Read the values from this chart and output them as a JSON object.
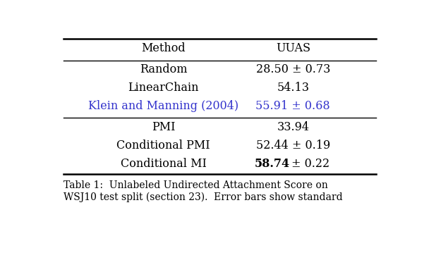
{
  "title": "Table 1:  Unlabeled Undirected Attachment Score on\nWSJ10 test split (section 23).  Error bars show standard",
  "col_headers": [
    "Method",
    "UUAS"
  ],
  "rows": [
    {
      "method": "Random",
      "uuas": "28.50 ± 0.73",
      "bold_uuas": false,
      "color": "#000000",
      "small_caps": true,
      "section": 1
    },
    {
      "method": "LinearChain",
      "uuas": "54.13",
      "bold_uuas": false,
      "color": "#000000",
      "small_caps": true,
      "section": 1
    },
    {
      "method": "Klein and Manning (2004)",
      "uuas": "55.91 ± 0.68",
      "bold_uuas": false,
      "color": "#3333cc",
      "small_caps": false,
      "section": 1
    },
    {
      "method": "PMI",
      "uuas": "33.94",
      "bold_uuas": false,
      "color": "#000000",
      "small_caps": false,
      "section": 2
    },
    {
      "method": "Conditional PMI",
      "uuas": "52.44 ± 0.19",
      "bold_uuas": false,
      "color": "#000000",
      "small_caps": true,
      "section": 2
    },
    {
      "method": "Conditional MI",
      "uuas": "58.74 ± 0.22",
      "bold_uuas": true,
      "color": "#000000",
      "small_caps": true,
      "section": 2
    }
  ],
  "background_color": "#ffffff",
  "line_color": "#000000",
  "font_size": 11.5,
  "caption_font_size": 10.0,
  "lw_thick": 1.8,
  "lw_thin": 1.0
}
